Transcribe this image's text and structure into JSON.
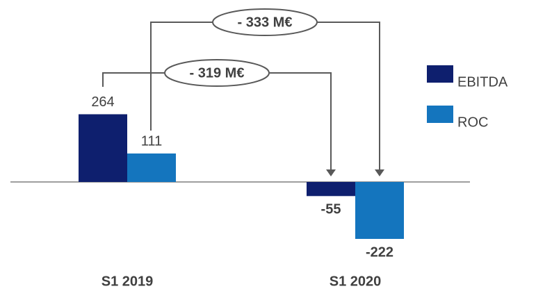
{
  "chart_data": {
    "type": "bar",
    "categories": [
      "S1 2019",
      "S1 2020"
    ],
    "series": [
      {
        "name": "EBITDA",
        "values": [
          264,
          -55
        ]
      },
      {
        "name": "ROC",
        "values": [
          111,
          -222
        ]
      }
    ],
    "data_labels": {
      "EBITDA": [
        "264",
        "-55"
      ],
      "ROC": [
        "111",
        "-222"
      ]
    },
    "annotations": [
      {
        "text": "- 333 M€",
        "series": "ROC"
      },
      {
        "text": "- 319 M€",
        "series": "EBITDA"
      }
    ],
    "legend_position": "right",
    "grid": false,
    "ylim": [
      -250,
      400
    ]
  },
  "colors": {
    "EBITDA": "#0e1f6e",
    "ROC": "#1475be",
    "axis": "#7f7f7f",
    "connector": "#595959",
    "text": "#404040"
  }
}
